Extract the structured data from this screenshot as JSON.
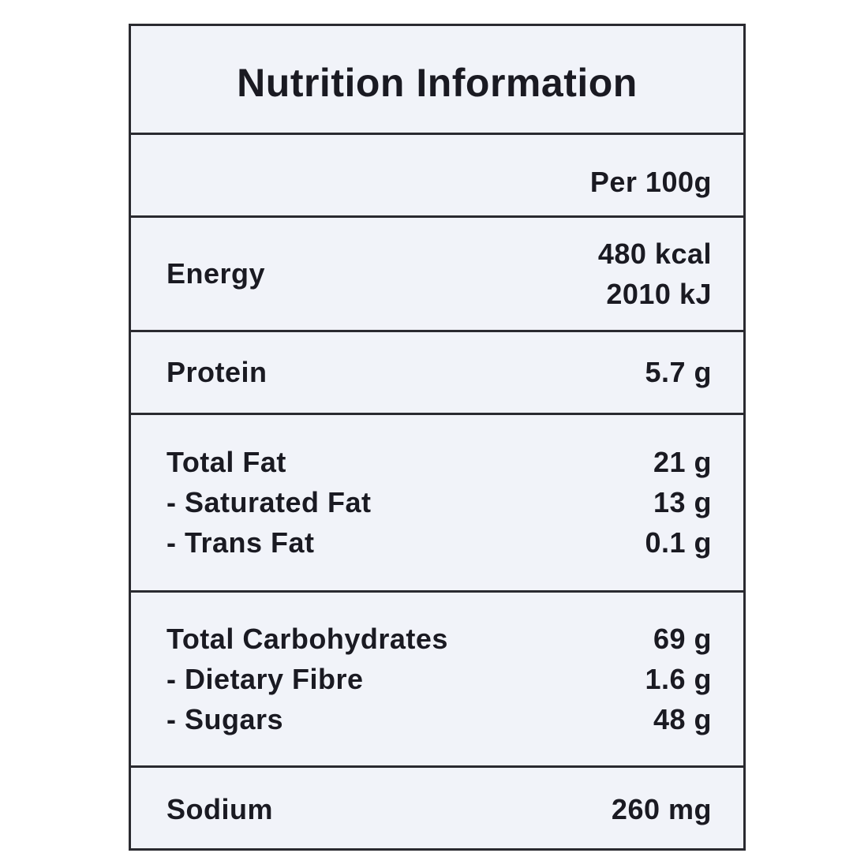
{
  "title": "Nutrition Information",
  "column_header": "Per 100g",
  "sections": [
    {
      "rows": [
        {
          "label": "Energy",
          "values": [
            "480 kcal",
            "2010 kJ"
          ]
        }
      ]
    },
    {
      "rows": [
        {
          "label": "Protein",
          "values": [
            "5.7 g"
          ]
        }
      ]
    },
    {
      "rows": [
        {
          "label": "Total Fat",
          "values": [
            "21 g"
          ]
        },
        {
          "label": "- Saturated Fat",
          "values": [
            "13 g"
          ]
        },
        {
          "label": "- Trans Fat",
          "values": [
            "0.1 g"
          ]
        }
      ]
    },
    {
      "rows": [
        {
          "label": "Total Carbohydrates",
          "values": [
            "69 g"
          ]
        },
        {
          "label": "- Dietary Fibre",
          "values": [
            "1.6 g"
          ]
        },
        {
          "label": "- Sugars",
          "values": [
            "48 g"
          ]
        }
      ]
    },
    {
      "rows": [
        {
          "label": "Sodium",
          "values": [
            "260 mg"
          ]
        }
      ]
    }
  ]
}
